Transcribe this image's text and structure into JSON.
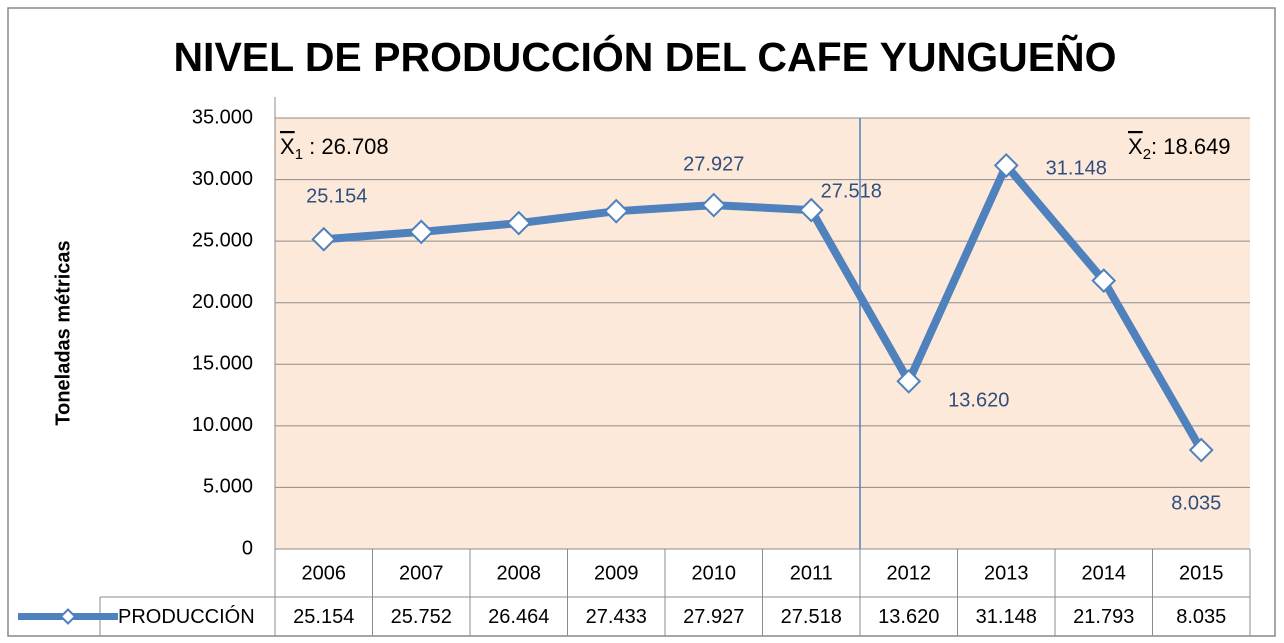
{
  "chart_data": {
    "type": "line",
    "title": "NIVEL DE PRODUCCIÓN DEL CAFE YUNGUEÑO",
    "y_label": "Toneladas métricas",
    "categories": [
      "2006",
      "2007",
      "2008",
      "2009",
      "2010",
      "2011",
      "2012",
      "2013",
      "2014",
      "2015"
    ],
    "series": [
      {
        "name": "PRODUCCIÓN",
        "color": "#4f81bd",
        "values": [
          25154,
          25752,
          26464,
          27433,
          27927,
          27518,
          13620,
          31148,
          21793,
          8035
        ],
        "value_labels": [
          "25.154",
          "25.752",
          "26.464",
          "27.433",
          "27.927",
          "27.518",
          "13.620",
          "31.148",
          "21.793",
          "8.035"
        ],
        "data_labels": [
          "25.154",
          null,
          null,
          null,
          "27.927",
          "27.518",
          "13.620",
          "31.148",
          null,
          "8.035"
        ]
      }
    ],
    "annotations": [
      {
        "symbol": "X",
        "subscript": "1",
        "text": " : 26.708"
      },
      {
        "symbol": "X",
        "subscript": "2",
        "text": ": 18.649"
      }
    ],
    "ylim": [
      0,
      35000
    ],
    "yticks": [
      0,
      {
        "value": 5000,
        "label": "5.000"
      },
      {
        "value": 10000,
        "label": "10.000"
      },
      {
        "value": 15000,
        "label": "15.000"
      },
      {
        "value": 20000,
        "label": "20.000"
      },
      {
        "value": 25000,
        "label": "25.000"
      },
      {
        "value": 30000,
        "label": "30.000"
      },
      {
        "value": 35000,
        "label": "35.000"
      }
    ],
    "grid": true,
    "plot_background": "#fde9d9",
    "data_table": true
  }
}
